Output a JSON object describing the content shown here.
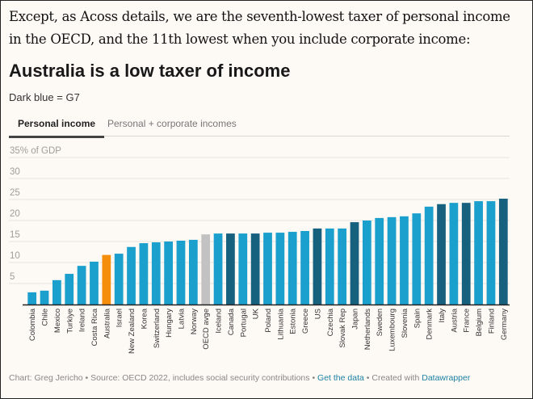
{
  "intro": {
    "text": "Except, as Acoss details, we are the seventh-lowest taxer of personal income in the OECD, and the 11th lowest when you include corporate income:"
  },
  "header": {
    "title": "Australia is a low taxer of income",
    "subtitle": "Dark blue = G7"
  },
  "tabs": [
    {
      "label": "Personal income",
      "active": true
    },
    {
      "label": "Personal + corporate incomes",
      "active": false
    }
  ],
  "colors": {
    "default": "#1b9fcd",
    "g7": "#17607e",
    "highlight": "#f48e0b",
    "average": "#c2c2c2",
    "gridline": "#e6e3df",
    "axis": "#222222",
    "tick_label": "#a09d99",
    "category_label": "#333333"
  },
  "chart_data": {
    "type": "bar",
    "title": "Australia is a low taxer of income",
    "subtitle": "Dark blue = G7",
    "xlabel": "",
    "ylabel": "% of GDP",
    "ylim": [
      0,
      35
    ],
    "yticks": [
      5,
      10,
      15,
      20,
      25,
      30,
      35
    ],
    "ytick_labels": [
      "5",
      "10",
      "15",
      "20",
      "25",
      "30",
      "35% of GDP"
    ],
    "grid": true,
    "categories": [
      "Colombia",
      "Chile",
      "Mexico",
      "Turkiye",
      "Ireland",
      "Costa Rica",
      "Australia",
      "Israel",
      "New Zealand",
      "Korea",
      "Switzerland",
      "Hungary",
      "Latvia",
      "Norway",
      "OECD avge",
      "Iceland",
      "Canada",
      "Portugal",
      "UK",
      "Poland",
      "Lithuania",
      "Estonia",
      "Greece",
      "US",
      "Czechia",
      "Slovak Rep",
      "Japan",
      "Netherlands",
      "Sweden",
      "Luxembourg",
      "Slovenia",
      "Spain",
      "Denmark",
      "Italy",
      "Austria",
      "France",
      "Belgium",
      "Finland",
      "Germany"
    ],
    "values": [
      2.9,
      3.3,
      5.8,
      7.3,
      9.2,
      10.2,
      11.8,
      12.1,
      13.7,
      14.6,
      14.8,
      15.0,
      15.2,
      15.4,
      16.7,
      16.9,
      16.9,
      16.9,
      16.9,
      17.1,
      17.1,
      17.3,
      17.5,
      18.1,
      18.1,
      18.1,
      19.6,
      20.0,
      20.6,
      20.8,
      21.0,
      21.7,
      23.3,
      23.9,
      24.2,
      24.2,
      24.6,
      24.6,
      25.2
    ],
    "groups": [
      "default",
      "default",
      "default",
      "default",
      "default",
      "default",
      "highlight",
      "default",
      "default",
      "default",
      "default",
      "default",
      "default",
      "default",
      "average",
      "default",
      "g7",
      "default",
      "g7",
      "default",
      "default",
      "default",
      "default",
      "g7",
      "default",
      "default",
      "g7",
      "default",
      "default",
      "default",
      "default",
      "default",
      "default",
      "g7",
      "default",
      "g7",
      "default",
      "default",
      "g7"
    ]
  },
  "footer": {
    "credit": "Chart: Greg Jericho",
    "separator": " • ",
    "source": "Source: OECD 2022, includes social security contributions",
    "get_data_label": "Get the data",
    "created_with": "Created with ",
    "datawrapper_label": "Datawrapper"
  }
}
